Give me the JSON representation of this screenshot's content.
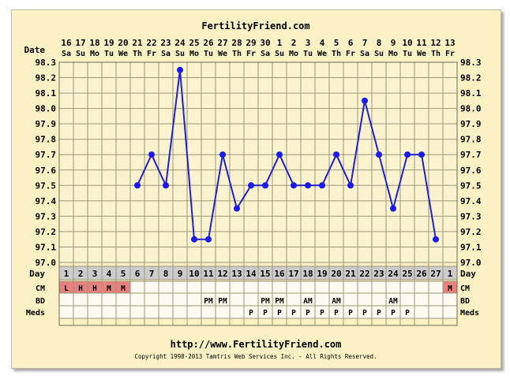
{
  "header": {
    "site_title": "FertilityFriend.com"
  },
  "footer": {
    "url": "http://www.FertilityFriend.com",
    "copyright": "Copyright 1998-2013 Tamtris Web Services Inc. - All Rights Reserved."
  },
  "row_labels": {
    "date": "Date",
    "day": "Day",
    "cm": "CM",
    "bd": "BD",
    "meds": "Meds"
  },
  "colors": {
    "line": "#2222cc",
    "point": "#1a1aee",
    "grid": "#9a9a7a",
    "cm_fill": "#e88080",
    "day_fill": "#cccccc",
    "card_bg": "#fbf1c5"
  },
  "chart_data": {
    "type": "line",
    "ylim": [
      97.0,
      98.3
    ],
    "y_ticks": [
      "98.3",
      "98.2",
      "98.1",
      "98.0",
      "97.9",
      "97.8",
      "97.7",
      "97.6",
      "97.5",
      "97.4",
      "97.3",
      "97.2",
      "97.1",
      "97.0"
    ],
    "dates": [
      "16",
      "17",
      "18",
      "19",
      "20",
      "21",
      "22",
      "23",
      "24",
      "25",
      "26",
      "27",
      "28",
      "29",
      "30",
      "1",
      "2",
      "3",
      "4",
      "5",
      "6",
      "7",
      "8",
      "9",
      "10",
      "11",
      "12",
      "13"
    ],
    "weekdays": [
      "Sa",
      "Su",
      "Mo",
      "Tu",
      "We",
      "Th",
      "Fr",
      "Sa",
      "Su",
      "Mo",
      "Tu",
      "We",
      "Th",
      "Fr",
      "Sa",
      "Su",
      "Mo",
      "Tu",
      "We",
      "Th",
      "Fr",
      "Sa",
      "Su",
      "Mo",
      "Tu",
      "We",
      "Th",
      "Fr"
    ],
    "cycle_days": [
      "1",
      "2",
      "3",
      "4",
      "5",
      "6",
      "7",
      "8",
      "9",
      "10",
      "11",
      "12",
      "13",
      "14",
      "15",
      "16",
      "17",
      "18",
      "19",
      "20",
      "21",
      "22",
      "23",
      "24",
      "25",
      "26",
      "27",
      "1"
    ],
    "temps": [
      null,
      null,
      null,
      null,
      null,
      97.5,
      97.7,
      97.5,
      98.25,
      97.15,
      97.15,
      97.7,
      97.35,
      97.5,
      97.5,
      97.7,
      97.5,
      97.5,
      97.5,
      97.7,
      97.5,
      98.05,
      97.7,
      97.35,
      97.7,
      97.7,
      97.15,
      null
    ],
    "cm": [
      "L",
      "H",
      "H",
      "M",
      "M",
      "",
      "",
      "",
      "",
      "",
      "",
      "",
      "",
      "",
      "",
      "",
      "",
      "",
      "",
      "",
      "",
      "",
      "",
      "",
      "",
      "",
      "",
      "M"
    ],
    "bd": [
      "",
      "",
      "",
      "",
      "",
      "",
      "",
      "",
      "",
      "",
      "PM",
      "PM",
      "",
      "",
      "PM",
      "PM",
      "",
      "AM",
      "",
      "AM",
      "",
      "",
      "",
      "AM",
      "",
      "",
      "",
      ""
    ],
    "meds": [
      "",
      "",
      "",
      "",
      "",
      "",
      "",
      "",
      "",
      "",
      "",
      "",
      "",
      "P",
      "P",
      "P",
      "P",
      "P",
      "P",
      "P",
      "P",
      "P",
      "P",
      "P",
      "P",
      "",
      "",
      ""
    ]
  }
}
